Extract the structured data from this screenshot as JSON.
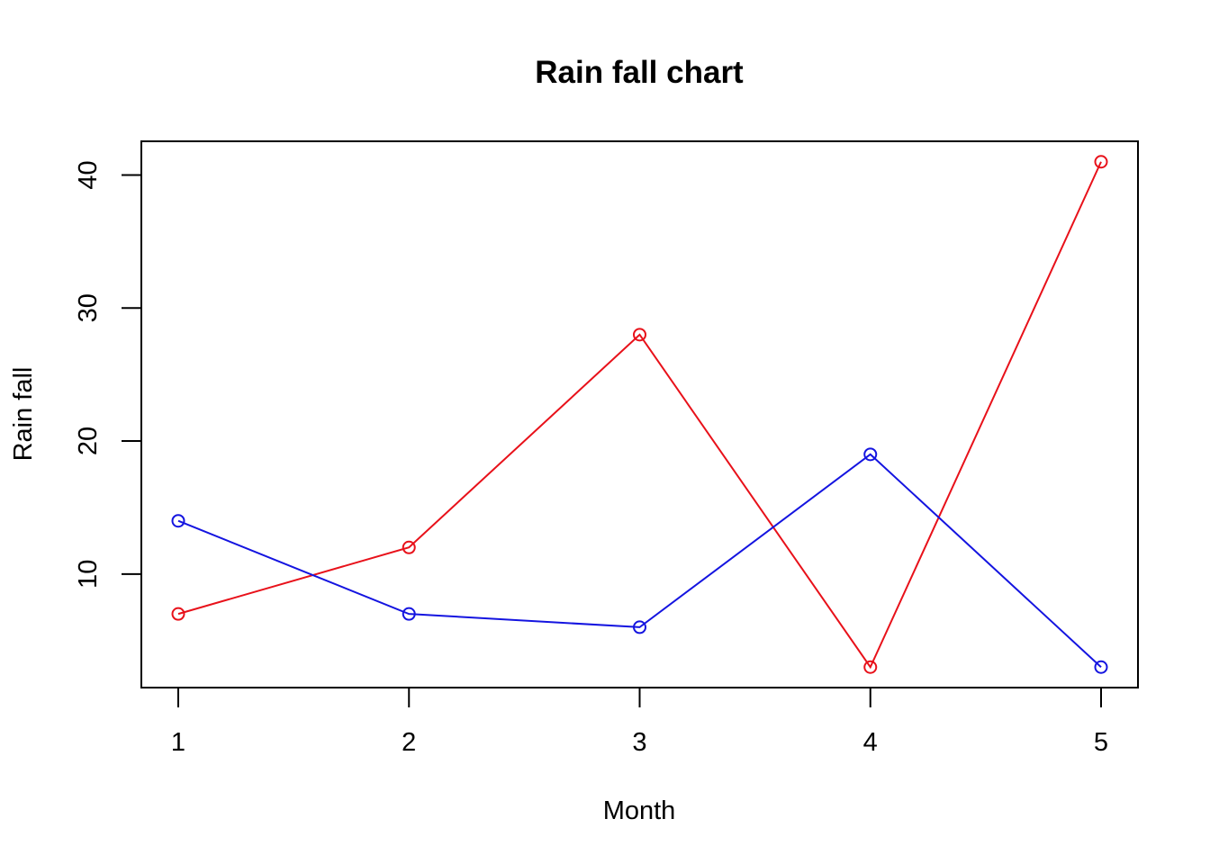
{
  "chart_data": {
    "type": "line",
    "title": "Rain fall chart",
    "xlabel": "Month",
    "ylabel": "Rain fall",
    "x": [
      1,
      2,
      3,
      4,
      5
    ],
    "x_ticks": [
      1,
      2,
      3,
      4,
      5
    ],
    "y_ticks": [
      10,
      20,
      30,
      40
    ],
    "xlim": [
      0.84,
      5.16
    ],
    "ylim": [
      1.46,
      42.54
    ],
    "grid": false,
    "point_marker": "open-circle",
    "series": [
      {
        "values": [
          7,
          12,
          28,
          3,
          41
        ],
        "color": "#e8111a"
      },
      {
        "values": [
          14,
          7,
          6,
          19,
          3
        ],
        "color": "#1414e0"
      }
    ]
  }
}
